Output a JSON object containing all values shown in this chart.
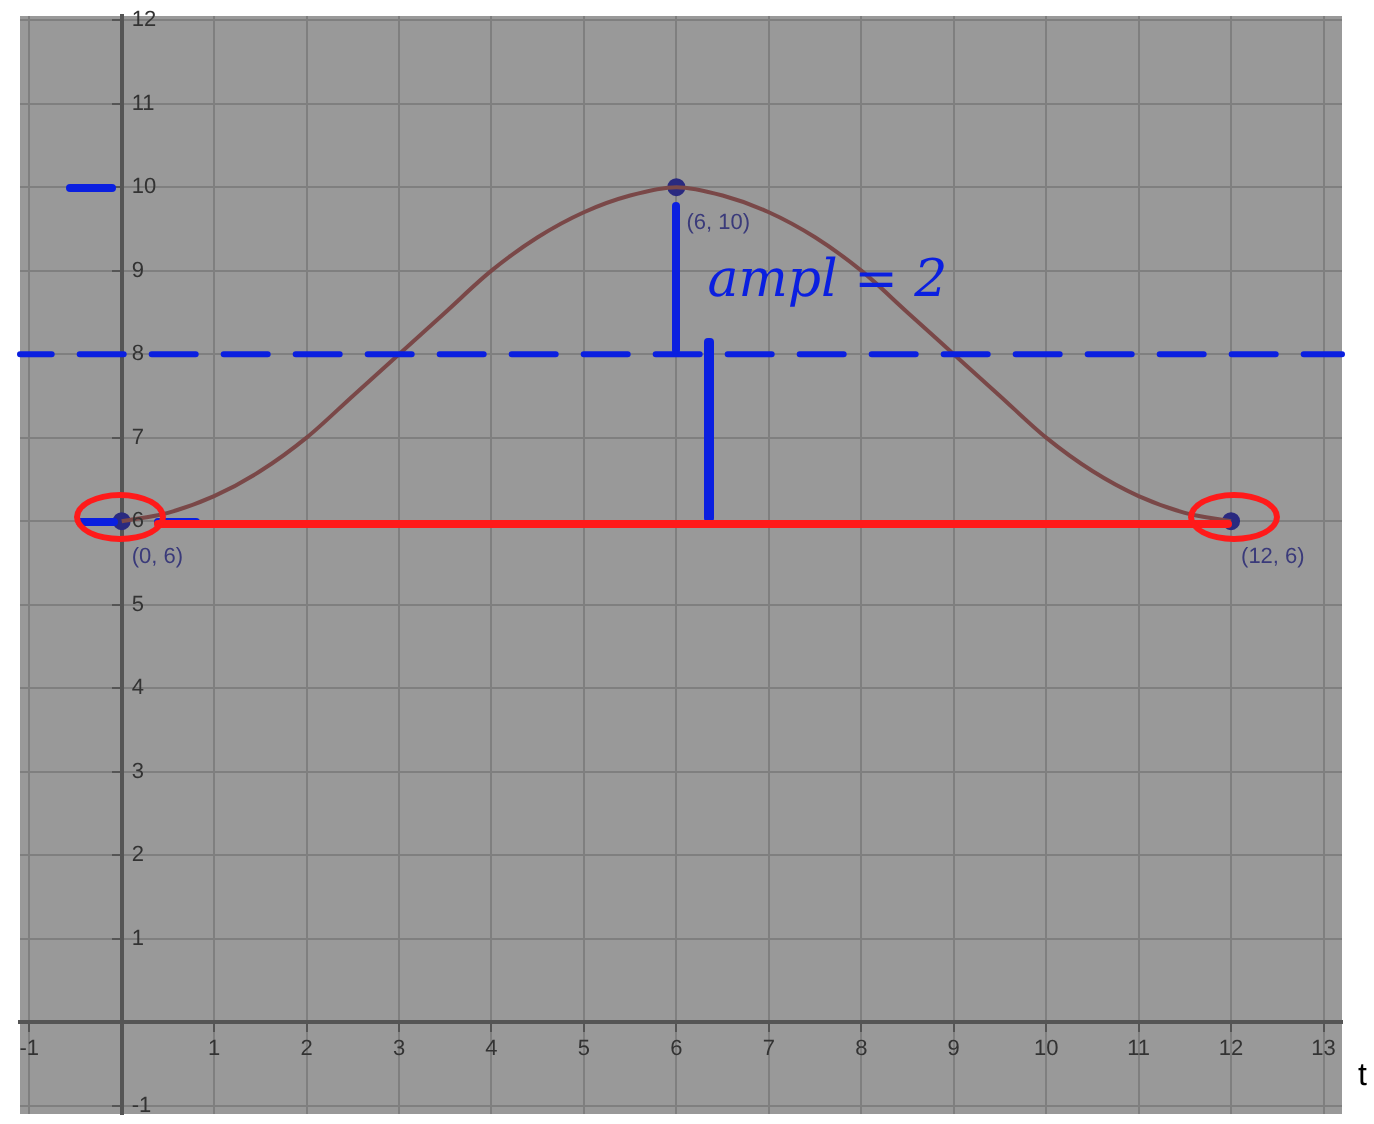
{
  "chart_data": {
    "type": "line",
    "xlabel": "t",
    "x": [
      0,
      0.5,
      1,
      1.5,
      2,
      2.5,
      3,
      3.5,
      4,
      4.5,
      5,
      5.5,
      6,
      6.5,
      7,
      7.5,
      8,
      8.5,
      9,
      9.5,
      10,
      10.5,
      11,
      11.5,
      12
    ],
    "series": [
      {
        "color": "#7a4848",
        "marker": "none",
        "values": [
          6,
          6.1,
          6.3,
          6.6,
          7,
          7.5,
          8,
          8.5,
          9,
          9.4,
          9.7,
          9.9,
          10,
          9.9,
          9.7,
          9.4,
          9,
          8.5,
          8,
          7.5,
          7,
          6.6,
          6.3,
          6.1,
          6
        ]
      },
      {
        "type": "scatter",
        "color": "#2a2a80",
        "marker": "circle",
        "x": [
          0,
          6,
          12
        ],
        "values": [
          6,
          10,
          6
        ]
      }
    ],
    "xlim": [
      -1.1,
      13.2
    ],
    "ylim": [
      -1.1,
      12.05
    ],
    "xticks": [
      {
        "value": -1,
        "label": "-1"
      },
      1,
      2,
      3,
      4,
      5,
      6,
      7,
      8,
      9,
      10,
      11,
      12,
      13
    ],
    "yticks": [
      -1,
      1,
      2,
      3,
      4,
      5,
      6,
      7,
      8,
      9,
      10,
      11,
      12
    ],
    "grid": true,
    "ref_lines": [
      {
        "axis": "y",
        "value": 8,
        "color": "#0a1fe0",
        "line_style": "dashed"
      }
    ],
    "annotations": [
      {
        "text": "(0, 6)",
        "x": 0,
        "y": 6
      },
      {
        "text": "(6, 10)",
        "x": 6,
        "y": 10
      },
      {
        "text": "(12, 6)",
        "x": 12,
        "y": 6
      },
      "ampl = 2"
    ]
  }
}
